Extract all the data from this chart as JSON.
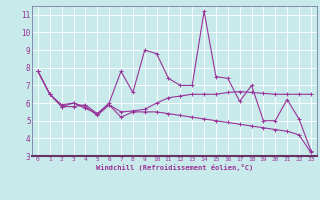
{
  "xlabel": "Windchill (Refroidissement éolien,°C)",
  "background_color": "#c8eaea",
  "line_color": "#993399",
  "grid_color": "#aadddd",
  "xlim": [
    -0.5,
    23.5
  ],
  "ylim": [
    3.0,
    11.5
  ],
  "yticks": [
    3,
    4,
    5,
    6,
    7,
    8,
    9,
    10,
    11
  ],
  "xticks": [
    0,
    1,
    2,
    3,
    4,
    5,
    6,
    7,
    8,
    9,
    10,
    11,
    12,
    13,
    14,
    15,
    16,
    17,
    18,
    19,
    20,
    21,
    22,
    23
  ],
  "line1_x": [
    0,
    1,
    2,
    3,
    4,
    5,
    6,
    7,
    8,
    9,
    10,
    11,
    12,
    13,
    14,
    15,
    16,
    17,
    18,
    19,
    20,
    21,
    22,
    23
  ],
  "line1_y": [
    7.8,
    6.5,
    5.8,
    5.8,
    5.9,
    5.4,
    5.9,
    5.5,
    5.55,
    5.65,
    6.0,
    6.3,
    6.4,
    6.5,
    6.5,
    6.5,
    6.6,
    6.65,
    6.6,
    6.55,
    6.5,
    6.5,
    6.5,
    6.5
  ],
  "line2_x": [
    0,
    1,
    2,
    3,
    4,
    5,
    6,
    7,
    8,
    9,
    10,
    11,
    12,
    13,
    14,
    15,
    16,
    17,
    18,
    19,
    20,
    21,
    22,
    23
  ],
  "line2_y": [
    7.8,
    6.5,
    5.8,
    6.0,
    5.7,
    5.4,
    6.0,
    7.8,
    6.6,
    9.0,
    8.8,
    7.4,
    7.0,
    7.0,
    11.2,
    7.5,
    7.4,
    6.1,
    7.0,
    5.0,
    5.0,
    6.2,
    5.1,
    3.3
  ],
  "line3_x": [
    0,
    1,
    2,
    3,
    4,
    5,
    6,
    7,
    8,
    9,
    10,
    11,
    12,
    13,
    14,
    15,
    16,
    17,
    18,
    19,
    20,
    21,
    22,
    23
  ],
  "line3_y": [
    7.8,
    6.5,
    5.9,
    6.0,
    5.8,
    5.3,
    5.9,
    5.2,
    5.5,
    5.5,
    5.5,
    5.4,
    5.3,
    5.2,
    5.1,
    5.0,
    4.9,
    4.8,
    4.7,
    4.6,
    4.5,
    4.4,
    4.2,
    3.2
  ]
}
